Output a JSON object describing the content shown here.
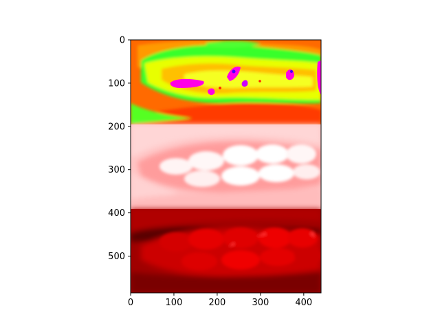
{
  "chart_data": {
    "type": "image",
    "title": "",
    "xlabel": "",
    "ylabel": "",
    "image_width": 440,
    "image_height": 585,
    "xlim": [
      0,
      440
    ],
    "ylim": [
      585,
      0
    ],
    "x_ticks": [
      0,
      100,
      200,
      300,
      400
    ],
    "y_ticks": [
      0,
      100,
      200,
      300,
      400,
      500
    ],
    "panels": [
      {
        "name": "false-color",
        "rows": [
          0,
          195
        ],
        "colormap": "hsv-like"
      },
      {
        "name": "light-red",
        "rows": [
          195,
          390
        ],
        "colormap": "white-to-red"
      },
      {
        "name": "dark-red",
        "rows": [
          390,
          585
        ],
        "colormap": "black-to-red"
      }
    ],
    "colors": {
      "green": "#39ff2a",
      "yellow": "#ffe600",
      "orange": "#ff7a00",
      "magenta": "#ff00e6",
      "pale_red": "#ffd0d0",
      "red": "#e00000",
      "dark_red": "#6a0000"
    }
  }
}
